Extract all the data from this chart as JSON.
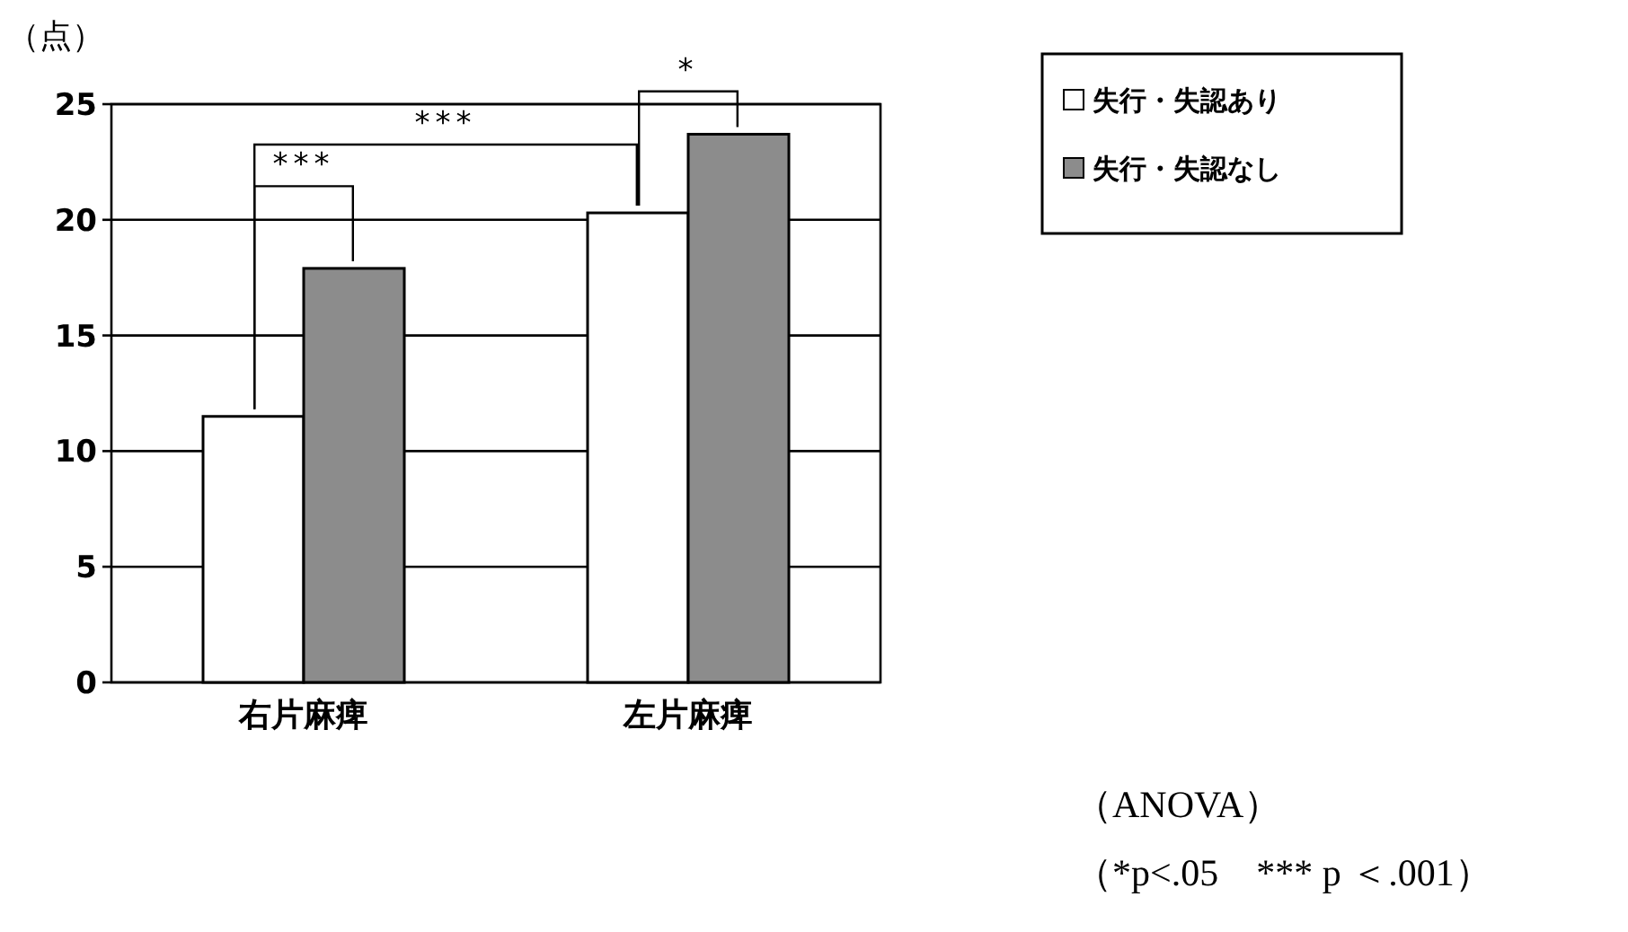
{
  "chart_data": {
    "type": "bar",
    "ylabel": "（点）",
    "categories": [
      "右片麻痺",
      "左片麻痺"
    ],
    "series": [
      {
        "name": "失行・失認あり",
        "color": "#ffffff",
        "values": [
          11.5,
          20.3
        ]
      },
      {
        "name": "失行・失認なし",
        "color": "#8c8c8c",
        "values": [
          17.9,
          23.7
        ]
      }
    ],
    "ylim": [
      0,
      25
    ],
    "yticks": [
      0,
      5,
      10,
      15,
      20,
      25
    ],
    "grid": "y",
    "legend": "top right",
    "annotations": [
      "***",
      "***",
      "*",
      "（ANOVA）",
      "（*p<.05　*** p ＜.001）"
    ]
  }
}
